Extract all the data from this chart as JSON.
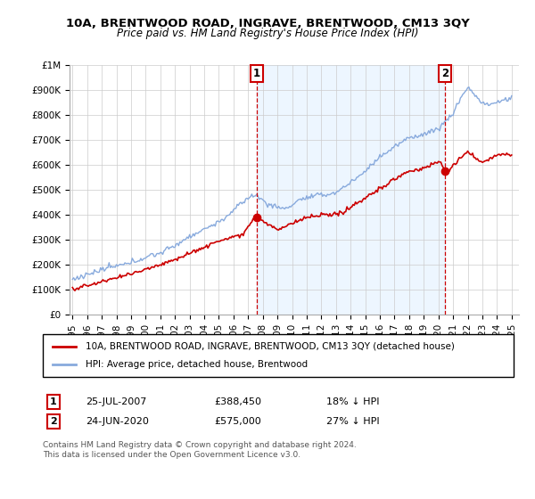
{
  "title": "10A, BRENTWOOD ROAD, INGRAVE, BRENTWOOD, CM13 3QY",
  "subtitle": "Price paid vs. HM Land Registry's House Price Index (HPI)",
  "legend_line1": "10A, BRENTWOOD ROAD, INGRAVE, BRENTWOOD, CM13 3QY (detached house)",
  "legend_line2": "HPI: Average price, detached house, Brentwood",
  "annotation1_date": "25-JUL-2007",
  "annotation1_price": "£388,450",
  "annotation1_hpi": "18% ↓ HPI",
  "annotation2_date": "24-JUN-2020",
  "annotation2_price": "£575,000",
  "annotation2_hpi": "27% ↓ HPI",
  "footer1": "Contains HM Land Registry data © Crown copyright and database right 2024.",
  "footer2": "This data is licensed under the Open Government Licence v3.0.",
  "price_color": "#cc0000",
  "hpi_color": "#88aadd",
  "sale1_x": 2007.57,
  "sale2_x": 2020.46,
  "sale1_y": 388450,
  "sale2_y": 575000,
  "ylim": [
    0,
    1000000
  ],
  "xlim_start": 1994.8,
  "xlim_end": 2025.5,
  "yticks": [
    0,
    100000,
    200000,
    300000,
    400000,
    500000,
    600000,
    700000,
    800000,
    900000,
    1000000
  ],
  "ytick_labels": [
    "£0",
    "£100K",
    "£200K",
    "£300K",
    "£400K",
    "£500K",
    "£600K",
    "£700K",
    "£800K",
    "£900K",
    "£1M"
  ],
  "xtick_years": [
    1995,
    1996,
    1997,
    1998,
    1999,
    2000,
    2001,
    2002,
    2003,
    2004,
    2005,
    2006,
    2007,
    2008,
    2009,
    2010,
    2011,
    2012,
    2013,
    2014,
    2015,
    2016,
    2017,
    2018,
    2019,
    2020,
    2021,
    2022,
    2023,
    2024,
    2025
  ]
}
